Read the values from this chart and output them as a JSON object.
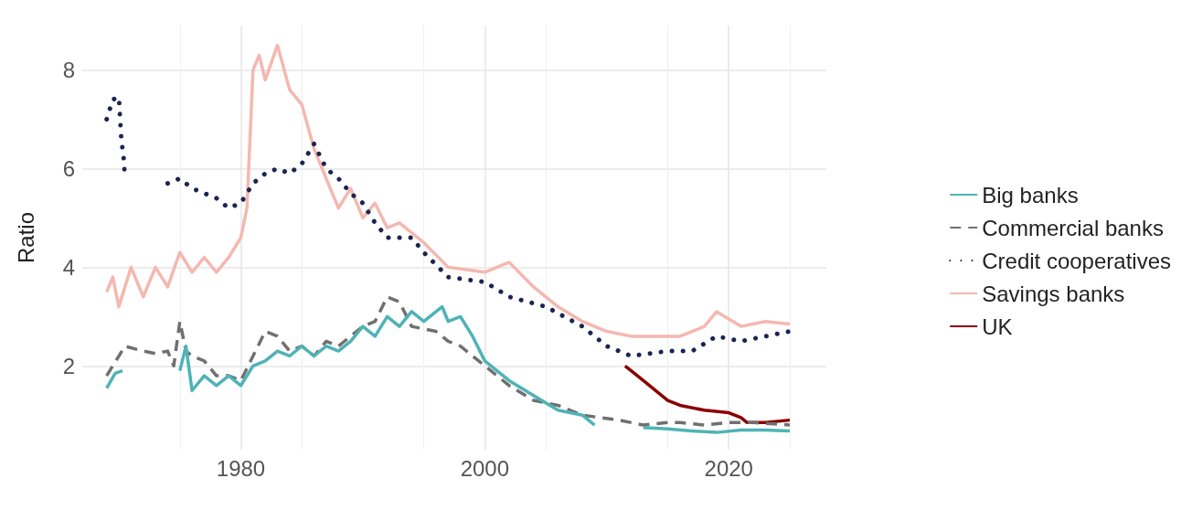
{
  "chart_data": {
    "type": "line",
    "ylabel": "Ratio",
    "xlim": [
      1967,
      2028
    ],
    "xticks": [
      1980,
      2000,
      2020
    ],
    "ylim": [
      0.3,
      8.9
    ],
    "yticks": [
      2,
      4,
      6,
      8
    ],
    "grid": true,
    "legend": "right",
    "marker": "none",
    "series": [
      {
        "name": "Big banks",
        "color": "#4fb3b5",
        "line_style": "solid",
        "x": [
          1969,
          1969.7,
          1970.3,
          1974.5,
          1975,
          1975.5,
          1976,
          1977,
          1978,
          1979,
          1980,
          1981,
          1982,
          1983,
          1984,
          1985,
          1986,
          1987,
          1988,
          1989,
          1990,
          1991,
          1992,
          1993,
          1994,
          1995,
          1996,
          1996.5,
          1997,
          1998,
          1999,
          2000,
          2002,
          2004,
          2006,
          2008,
          2009,
          2009.5,
          2013,
          2015,
          2017,
          2019,
          2021,
          2023,
          2025
        ],
        "values": [
          1.55,
          1.85,
          1.9,
          null,
          1.9,
          2.4,
          1.5,
          1.8,
          1.6,
          1.8,
          1.6,
          2.0,
          2.1,
          2.3,
          2.2,
          2.4,
          2.2,
          2.4,
          2.3,
          2.5,
          2.8,
          2.6,
          3.0,
          2.8,
          3.1,
          2.9,
          3.1,
          3.2,
          2.9,
          3.0,
          2.6,
          2.1,
          1.7,
          1.4,
          1.1,
          1.0,
          0.8,
          null,
          0.75,
          0.72,
          0.68,
          0.65,
          0.7,
          0.7,
          0.68
        ]
      },
      {
        "name": "Commercial banks",
        "color": "#707070",
        "line_style": "dashed",
        "x": [
          1969,
          1969.5,
          1970.5,
          1972,
          1973,
          1974,
          1974.5,
          1975,
          1975.5,
          1976,
          1977,
          1978,
          1979,
          1980,
          1981,
          1982,
          1983,
          1984,
          1985,
          1986,
          1987,
          1988,
          1990,
          1991,
          1992,
          1993,
          1994,
          1996,
          1997,
          1998,
          2000,
          2002,
          2004,
          2006,
          2008,
          2011,
          2013,
          2015,
          2016,
          2018,
          2020,
          2022,
          2025
        ],
        "values": [
          1.8,
          2.0,
          2.4,
          2.3,
          2.25,
          2.3,
          2.0,
          2.9,
          2.3,
          2.2,
          2.1,
          1.8,
          1.8,
          1.7,
          2.2,
          2.7,
          2.6,
          2.3,
          2.4,
          2.2,
          2.5,
          2.4,
          2.8,
          2.9,
          3.4,
          3.3,
          2.8,
          2.7,
          2.5,
          2.4,
          2.0,
          1.6,
          1.3,
          1.2,
          1.0,
          0.9,
          0.8,
          0.85,
          0.85,
          0.8,
          0.85,
          0.85,
          0.8
        ]
      },
      {
        "name": "Credit cooperatives",
        "color": "#1b2452",
        "line_style": "dotted",
        "x": [
          1969,
          1969.5,
          1970,
          1970.2,
          1970.4,
          1970.5,
          1972,
          1974,
          1975,
          1976,
          1977,
          1978,
          1979,
          1980,
          1981,
          1982,
          1983,
          1984,
          1985,
          1986,
          1987,
          1988,
          1989,
          1990,
          1991,
          1992,
          1994,
          1995,
          1997,
          2000,
          2002,
          2005,
          2008,
          2010,
          2012,
          2015,
          2017,
          2019,
          2021,
          2023,
          2025
        ],
        "values": [
          7.0,
          7.4,
          7.45,
          6.6,
          6.2,
          5.8,
          null,
          5.7,
          5.8,
          5.6,
          5.5,
          5.4,
          5.2,
          5.3,
          5.7,
          5.9,
          6.0,
          5.9,
          6.1,
          6.5,
          6.0,
          5.8,
          5.5,
          5.3,
          4.9,
          4.6,
          4.6,
          4.3,
          3.8,
          3.7,
          3.4,
          3.2,
          2.8,
          2.4,
          2.2,
          2.3,
          2.3,
          2.6,
          2.5,
          2.6,
          2.7
        ]
      },
      {
        "name": "Savings banks",
        "color": "#f4b8b0",
        "line_style": "solid",
        "x": [
          1969,
          1969.5,
          1970,
          1971,
          1972,
          1973,
          1974,
          1975,
          1976,
          1977,
          1978,
          1979,
          1980,
          1980.5,
          1981,
          1981.5,
          1982,
          1983,
          1984,
          1985,
          1986,
          1987,
          1988,
          1989,
          1990,
          1991,
          1992,
          1993,
          1995,
          1997,
          2000,
          2002,
          2004,
          2006,
          2008,
          2010,
          2012,
          2014,
          2016,
          2018,
          2019,
          2021,
          2023,
          2025
        ],
        "values": [
          3.5,
          3.8,
          3.2,
          4.0,
          3.4,
          4.0,
          3.6,
          4.3,
          3.9,
          4.2,
          3.9,
          4.2,
          4.6,
          5.2,
          8.0,
          8.3,
          7.8,
          8.5,
          7.6,
          7.3,
          6.4,
          5.8,
          5.2,
          5.6,
          5.0,
          5.3,
          4.8,
          4.9,
          4.5,
          4.0,
          3.9,
          4.1,
          3.6,
          3.2,
          2.9,
          2.7,
          2.6,
          2.6,
          2.6,
          2.8,
          3.1,
          2.8,
          2.9,
          2.85
        ]
      },
      {
        "name": "UK",
        "color": "#8b0000",
        "line_style": "solid",
        "x": [
          2011.5,
          2012,
          2013,
          2015,
          2016,
          2018,
          2020,
          2021,
          2021.5,
          2023,
          2025
        ],
        "values": [
          2.0,
          1.9,
          1.7,
          1.3,
          1.2,
          1.1,
          1.05,
          0.95,
          0.85,
          0.85,
          0.9
        ]
      }
    ]
  }
}
